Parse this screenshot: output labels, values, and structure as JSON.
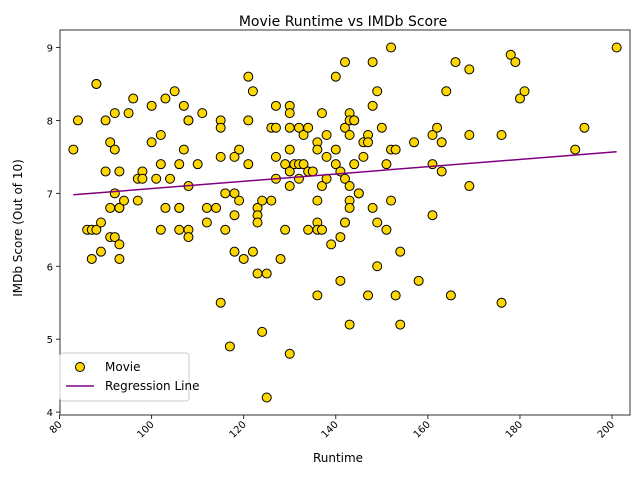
{
  "chart_data": {
    "type": "scatter",
    "title": "Movie Runtime vs IMDb Score",
    "xlabel": "Runtime",
    "ylabel": "IMDb Score (Out of 10)",
    "xlim": [
      80.1,
      203.9
    ],
    "ylim": [
      3.96,
      9.24
    ],
    "xticks": [
      80,
      100,
      120,
      140,
      160,
      180,
      200
    ],
    "yticks": [
      4,
      5,
      6,
      7,
      8,
      9
    ],
    "grid": false,
    "legend_position": "lower left",
    "series": [
      {
        "name": "Movie",
        "kind": "scatter",
        "color": "#ffd700",
        "edge_color": "#000000",
        "points": [
          [
            83,
            7.6
          ],
          [
            84,
            8.0
          ],
          [
            86,
            6.5
          ],
          [
            87,
            6.5
          ],
          [
            87,
            6.1
          ],
          [
            88,
            8.5
          ],
          [
            88,
            8.5
          ],
          [
            88,
            6.5
          ],
          [
            89,
            6.6
          ],
          [
            89,
            6.2
          ],
          [
            90,
            8.0
          ],
          [
            90,
            7.3
          ],
          [
            91,
            7.7
          ],
          [
            91,
            6.8
          ],
          [
            91,
            6.4
          ],
          [
            92,
            8.1
          ],
          [
            92,
            7.6
          ],
          [
            92,
            7.0
          ],
          [
            92,
            6.4
          ],
          [
            93,
            6.8
          ],
          [
            93,
            6.3
          ],
          [
            93,
            6.1
          ],
          [
            93,
            7.3
          ],
          [
            93,
            6.8
          ],
          [
            94,
            6.9
          ],
          [
            95,
            8.1
          ],
          [
            96,
            8.3
          ],
          [
            97,
            7.2
          ],
          [
            97,
            6.9
          ],
          [
            98,
            7.3
          ],
          [
            98,
            7.2
          ],
          [
            100,
            8.2
          ],
          [
            100,
            7.7
          ],
          [
            101,
            7.2
          ],
          [
            102,
            7.8
          ],
          [
            102,
            7.4
          ],
          [
            102,
            6.5
          ],
          [
            103,
            8.3
          ],
          [
            103,
            6.8
          ],
          [
            104,
            7.2
          ],
          [
            105,
            8.4
          ],
          [
            106,
            7.4
          ],
          [
            106,
            6.8
          ],
          [
            106,
            6.8
          ],
          [
            106,
            6.5
          ],
          [
            107,
            8.2
          ],
          [
            107,
            7.6
          ],
          [
            108,
            8.0
          ],
          [
            108,
            8.0
          ],
          [
            108,
            7.1
          ],
          [
            108,
            6.5
          ],
          [
            108,
            6.4
          ],
          [
            110,
            7.4
          ],
          [
            111,
            8.1
          ],
          [
            112,
            6.8
          ],
          [
            112,
            6.6
          ],
          [
            114,
            6.8
          ],
          [
            115,
            8.0
          ],
          [
            115,
            7.9
          ],
          [
            115,
            7.5
          ],
          [
            115,
            5.5
          ],
          [
            116,
            7.0
          ],
          [
            116,
            6.5
          ],
          [
            117,
            4.9
          ],
          [
            118,
            7.5
          ],
          [
            118,
            7.0
          ],
          [
            118,
            6.7
          ],
          [
            118,
            6.2
          ],
          [
            119,
            7.6
          ],
          [
            119,
            6.9
          ],
          [
            120,
            6.1
          ],
          [
            121,
            8.6
          ],
          [
            121,
            8.0
          ],
          [
            121,
            7.4
          ],
          [
            122,
            8.4
          ],
          [
            122,
            6.2
          ],
          [
            123,
            6.8
          ],
          [
            123,
            6.7
          ],
          [
            123,
            6.6
          ],
          [
            123,
            5.9
          ],
          [
            124,
            6.9
          ],
          [
            124,
            5.1
          ],
          [
            125,
            4.2
          ],
          [
            125,
            5.9
          ],
          [
            126,
            7.9
          ],
          [
            126,
            6.9
          ],
          [
            127,
            8.2
          ],
          [
            127,
            7.9
          ],
          [
            127,
            7.5
          ],
          [
            127,
            7.2
          ],
          [
            128,
            6.1
          ],
          [
            129,
            7.4
          ],
          [
            129,
            6.5
          ],
          [
            130,
            8.2
          ],
          [
            130,
            8.1
          ],
          [
            130,
            7.9
          ],
          [
            130,
            7.6
          ],
          [
            130,
            7.3
          ],
          [
            130,
            7.1
          ],
          [
            130,
            4.8
          ],
          [
            131,
            7.4
          ],
          [
            132,
            7.9
          ],
          [
            132,
            7.4
          ],
          [
            132,
            7.2
          ],
          [
            133,
            7.8
          ],
          [
            133,
            7.4
          ],
          [
            134,
            7.9
          ],
          [
            134,
            7.3
          ],
          [
            134,
            6.5
          ],
          [
            135,
            7.3
          ],
          [
            136,
            7.7
          ],
          [
            136,
            7.6
          ],
          [
            136,
            6.9
          ],
          [
            136,
            6.6
          ],
          [
            136,
            6.5
          ],
          [
            136,
            5.6
          ],
          [
            137,
            8.1
          ],
          [
            137,
            7.1
          ],
          [
            137,
            6.5
          ],
          [
            138,
            7.8
          ],
          [
            138,
            7.5
          ],
          [
            138,
            7.2
          ],
          [
            139,
            6.3
          ],
          [
            140,
            8.6
          ],
          [
            140,
            7.6
          ],
          [
            140,
            7.4
          ],
          [
            141,
            7.3
          ],
          [
            141,
            6.4
          ],
          [
            141,
            5.8
          ],
          [
            142,
            8.8
          ],
          [
            142,
            7.9
          ],
          [
            142,
            7.2
          ],
          [
            142,
            6.6
          ],
          [
            142,
            6.6
          ],
          [
            143,
            8.1
          ],
          [
            143,
            8.0
          ],
          [
            143,
            7.8
          ],
          [
            143,
            7.1
          ],
          [
            143,
            6.9
          ],
          [
            143,
            6.8
          ],
          [
            143,
            5.2
          ],
          [
            144,
            8.0
          ],
          [
            144,
            8.0
          ],
          [
            144,
            7.4
          ],
          [
            145,
            7.0
          ],
          [
            145,
            7.0
          ],
          [
            146,
            7.7
          ],
          [
            146,
            7.5
          ],
          [
            147,
            7.8
          ],
          [
            147,
            7.7
          ],
          [
            147,
            5.6
          ],
          [
            148,
            8.8
          ],
          [
            148,
            8.2
          ],
          [
            148,
            6.8
          ],
          [
            149,
            8.4
          ],
          [
            149,
            6.6
          ],
          [
            149,
            6.0
          ],
          [
            150,
            7.9
          ],
          [
            151,
            7.4
          ],
          [
            151,
            6.5
          ],
          [
            152,
            9.0
          ],
          [
            152,
            7.6
          ],
          [
            152,
            6.9
          ],
          [
            153,
            7.6
          ],
          [
            153,
            5.6
          ],
          [
            154,
            6.2
          ],
          [
            154,
            5.2
          ],
          [
            157,
            7.7
          ],
          [
            158,
            5.8
          ],
          [
            161,
            7.8
          ],
          [
            161,
            7.4
          ],
          [
            161,
            6.7
          ],
          [
            162,
            7.9
          ],
          [
            163,
            7.7
          ],
          [
            163,
            7.3
          ],
          [
            164,
            8.4
          ],
          [
            165,
            5.6
          ],
          [
            166,
            8.8
          ],
          [
            169,
            8.7
          ],
          [
            169,
            7.8
          ],
          [
            169,
            7.1
          ],
          [
            176,
            7.8
          ],
          [
            176,
            5.5
          ],
          [
            178,
            8.9
          ],
          [
            179,
            8.8
          ],
          [
            180,
            8.3
          ],
          [
            181,
            8.4
          ],
          [
            192,
            7.6
          ],
          [
            194,
            7.9
          ],
          [
            201,
            9.0
          ]
        ]
      },
      {
        "name": "Regression Line",
        "kind": "line",
        "color": "#800080",
        "points": [
          [
            83,
            6.98
          ],
          [
            201,
            7.57
          ]
        ]
      }
    ]
  }
}
